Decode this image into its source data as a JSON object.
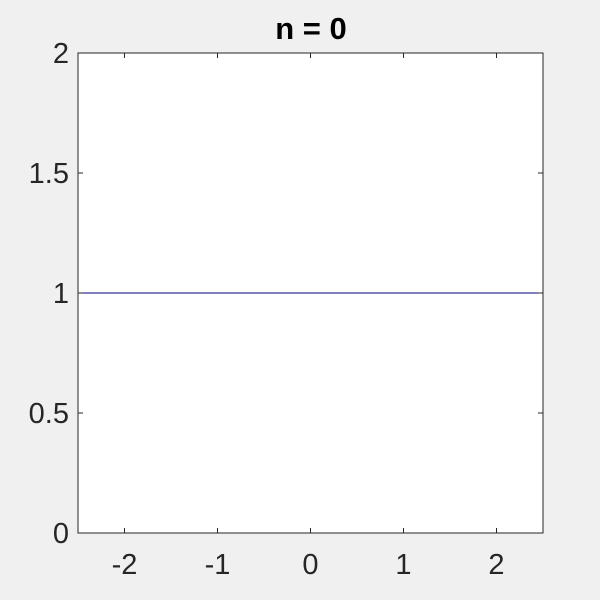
{
  "chart_data": {
    "type": "line",
    "title": "n = 0",
    "xlabel": "",
    "ylabel": "",
    "xlim": [
      -2.5,
      2.5
    ],
    "ylim": [
      0,
      2
    ],
    "xticks": [
      -2,
      -1,
      0,
      1,
      2
    ],
    "xtick_labels": [
      "-2",
      "-1",
      "0",
      "1",
      "2"
    ],
    "yticks": [
      0,
      0.5,
      1,
      1.5,
      2
    ],
    "ytick_labels": [
      "0",
      "0.5",
      "1",
      "1.5",
      "2"
    ],
    "grid": false,
    "series": [
      {
        "x": [
          -2.5,
          2.5
        ],
        "y": [
          1,
          1
        ],
        "color": "#000080"
      }
    ]
  },
  "colors": {
    "figure_background": "#f0f0f0",
    "axes_background": "#ffffff",
    "axes_edge": "#262626",
    "line": "#000080"
  }
}
